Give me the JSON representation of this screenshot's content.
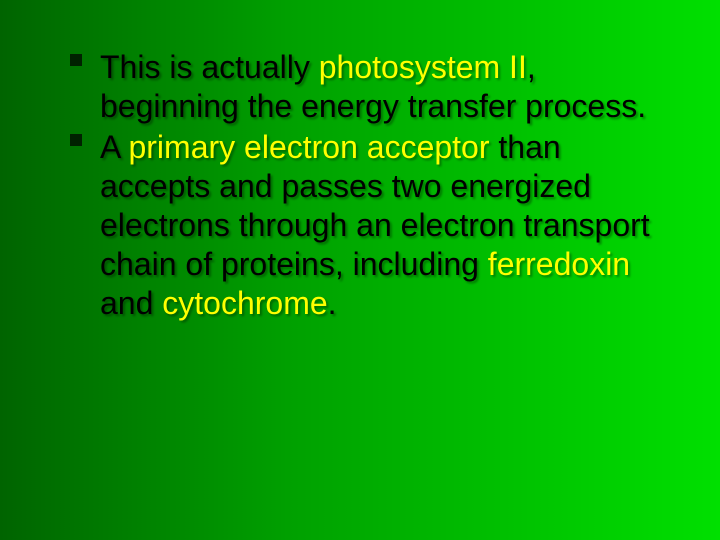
{
  "slide": {
    "background": {
      "gradient_stops": [
        "#006400",
        "#00a000",
        "#00e000"
      ],
      "direction": "to right"
    },
    "text_color": "#000000",
    "highlight_color": "#ffff00",
    "bullet_color": "#002200",
    "font_family": "Arial",
    "font_size_pt": 32,
    "line_height": 1.22,
    "text_shadow": "2px 2px 2px rgba(0,0,0,0.35)",
    "bullets": [
      {
        "segments": [
          {
            "text": "This is actually ",
            "highlight": false
          },
          {
            "text": "photosystem II",
            "highlight": true
          },
          {
            "text": ", beginning the energy transfer process.",
            "highlight": false
          }
        ]
      },
      {
        "segments": [
          {
            "text": "A ",
            "highlight": false
          },
          {
            "text": "primary electron acceptor",
            "highlight": true
          },
          {
            "text": " than accepts and passes two energized electrons through an electron transport chain of proteins, including ",
            "highlight": false
          },
          {
            "text": "ferredoxin",
            "highlight": true
          },
          {
            "text": " and ",
            "highlight": false
          },
          {
            "text": "cytochrome",
            "highlight": true
          },
          {
            "text": ".",
            "highlight": false
          }
        ]
      }
    ]
  }
}
